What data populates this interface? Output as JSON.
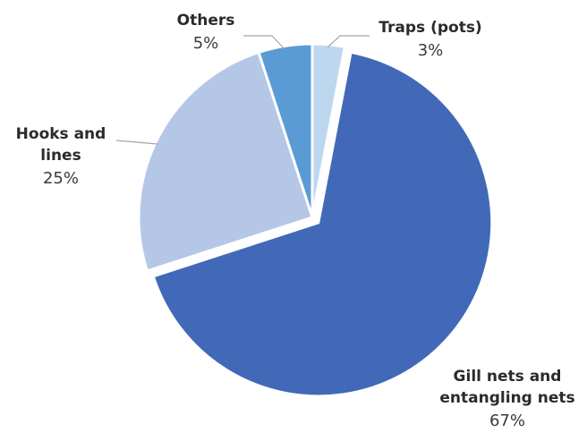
{
  "chart_data": {
    "type": "pie",
    "title": "",
    "slices": [
      {
        "label_lines": [
          "Traps (pots)"
        ],
        "value": 3,
        "value_label": "3%",
        "color": "#bdd7ee"
      },
      {
        "label_lines": [
          "Gill nets and",
          "entangling nets"
        ],
        "value": 67,
        "value_label": "67%",
        "color": "#4169b8"
      },
      {
        "label_lines": [
          "Hooks and",
          "lines"
        ],
        "value": 25,
        "value_label": "25%",
        "color": "#b4c7e7"
      },
      {
        "label_lines": [
          "Others"
        ],
        "value": 5,
        "value_label": "5%",
        "color": "#5b9bd5"
      }
    ],
    "start_angle_deg": 0,
    "direction": "clockwise",
    "exploded_slice": "Gill nets and entangling nets",
    "legend": "none"
  }
}
